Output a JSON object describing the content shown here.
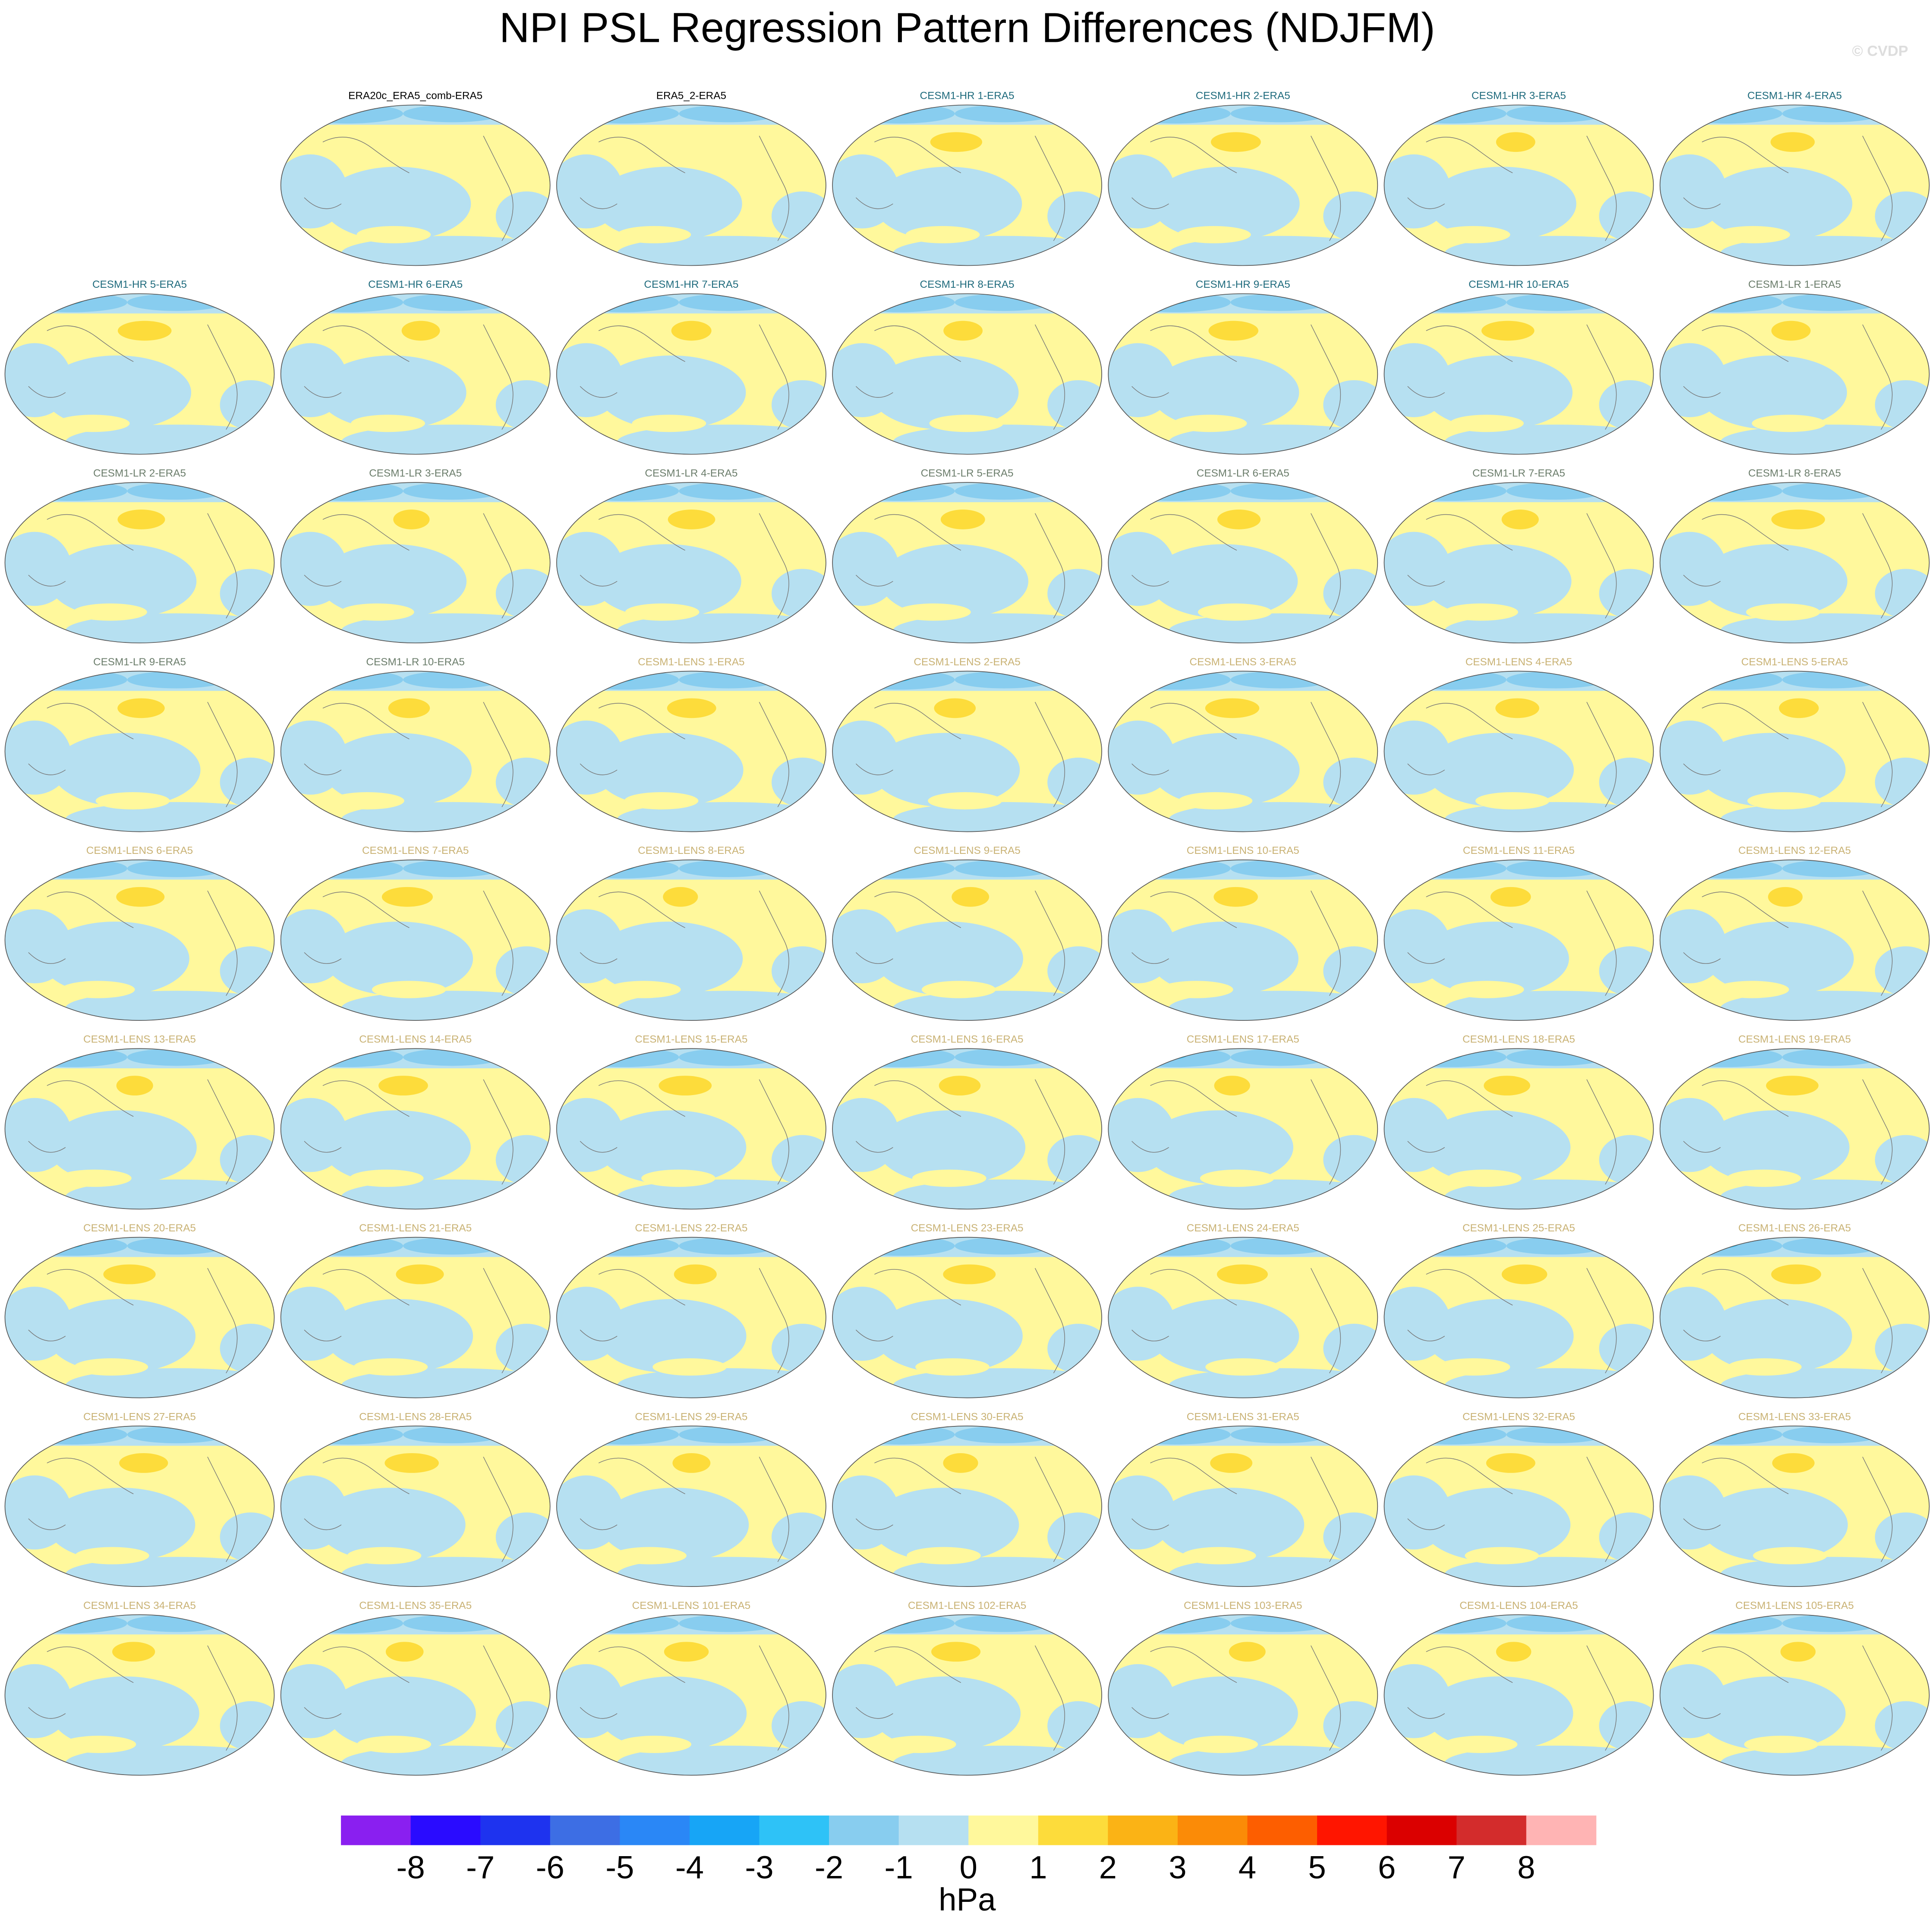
{
  "title": "NPI PSL Regression Pattern Differences (NDJFM)",
  "watermark": "© CVDP",
  "panels": [
    {
      "label": "ERA20c_ERA5_comb-ERA5",
      "color": "#000000"
    },
    {
      "label": "ERA5_2-ERA5",
      "color": "#000000"
    },
    {
      "label": "CESM1-HR 1-ERA5",
      "color": "#1f6b7d"
    },
    {
      "label": "CESM1-HR 2-ERA5",
      "color": "#1f6b7d"
    },
    {
      "label": "CESM1-HR 3-ERA5",
      "color": "#1f6b7d"
    },
    {
      "label": "CESM1-HR 4-ERA5",
      "color": "#1f6b7d"
    },
    {
      "label": "CESM1-HR 5-ERA5",
      "color": "#1f6b7d"
    },
    {
      "label": "CESM1-HR 6-ERA5",
      "color": "#1f6b7d"
    },
    {
      "label": "CESM1-HR 7-ERA5",
      "color": "#1f6b7d"
    },
    {
      "label": "CESM1-HR 8-ERA5",
      "color": "#1f6b7d"
    },
    {
      "label": "CESM1-HR 9-ERA5",
      "color": "#1f6b7d"
    },
    {
      "label": "CESM1-HR 10-ERA5",
      "color": "#1f6b7d"
    },
    {
      "label": "CESM1-LR 1-ERA5",
      "color": "#6b7d6b"
    },
    {
      "label": "CESM1-LR 2-ERA5",
      "color": "#6b7d6b"
    },
    {
      "label": "CESM1-LR 3-ERA5",
      "color": "#6b7d6b"
    },
    {
      "label": "CESM1-LR 4-ERA5",
      "color": "#6b7d6b"
    },
    {
      "label": "CESM1-LR 5-ERA5",
      "color": "#6b7d6b"
    },
    {
      "label": "CESM1-LR 6-ERA5",
      "color": "#6b7d6b"
    },
    {
      "label": "CESM1-LR 7-ERA5",
      "color": "#6b7d6b"
    },
    {
      "label": "CESM1-LR 8-ERA5",
      "color": "#6b7d6b"
    },
    {
      "label": "CESM1-LR 9-ERA5",
      "color": "#6b7d6b"
    },
    {
      "label": "CESM1-LR 10-ERA5",
      "color": "#6b7d6b"
    },
    {
      "label": "CESM1-LENS 1-ERA5",
      "color": "#c9b274"
    },
    {
      "label": "CESM1-LENS 2-ERA5",
      "color": "#c9b274"
    },
    {
      "label": "CESM1-LENS 3-ERA5",
      "color": "#c9b274"
    },
    {
      "label": "CESM1-LENS 4-ERA5",
      "color": "#c9b274"
    },
    {
      "label": "CESM1-LENS 5-ERA5",
      "color": "#c9b274"
    },
    {
      "label": "CESM1-LENS 6-ERA5",
      "color": "#c9b274"
    },
    {
      "label": "CESM1-LENS 7-ERA5",
      "color": "#c9b274"
    },
    {
      "label": "CESM1-LENS 8-ERA5",
      "color": "#c9b274"
    },
    {
      "label": "CESM1-LENS 9-ERA5",
      "color": "#c9b274"
    },
    {
      "label": "CESM1-LENS 10-ERA5",
      "color": "#c9b274"
    },
    {
      "label": "CESM1-LENS 11-ERA5",
      "color": "#c9b274"
    },
    {
      "label": "CESM1-LENS 12-ERA5",
      "color": "#c9b274"
    },
    {
      "label": "CESM1-LENS 13-ERA5",
      "color": "#c9b274"
    },
    {
      "label": "CESM1-LENS 14-ERA5",
      "color": "#c9b274"
    },
    {
      "label": "CESM1-LENS 15-ERA5",
      "color": "#c9b274"
    },
    {
      "label": "CESM1-LENS 16-ERA5",
      "color": "#c9b274"
    },
    {
      "label": "CESM1-LENS 17-ERA5",
      "color": "#c9b274"
    },
    {
      "label": "CESM1-LENS 18-ERA5",
      "color": "#c9b274"
    },
    {
      "label": "CESM1-LENS 19-ERA5",
      "color": "#c9b274"
    },
    {
      "label": "CESM1-LENS 20-ERA5",
      "color": "#c9b274"
    },
    {
      "label": "CESM1-LENS 21-ERA5",
      "color": "#c9b274"
    },
    {
      "label": "CESM1-LENS 22-ERA5",
      "color": "#c9b274"
    },
    {
      "label": "CESM1-LENS 23-ERA5",
      "color": "#c9b274"
    },
    {
      "label": "CESM1-LENS 24-ERA5",
      "color": "#c9b274"
    },
    {
      "label": "CESM1-LENS 25-ERA5",
      "color": "#c9b274"
    },
    {
      "label": "CESM1-LENS 26-ERA5",
      "color": "#c9b274"
    },
    {
      "label": "CESM1-LENS 27-ERA5",
      "color": "#c9b274"
    },
    {
      "label": "CESM1-LENS 28-ERA5",
      "color": "#c9b274"
    },
    {
      "label": "CESM1-LENS 29-ERA5",
      "color": "#c9b274"
    },
    {
      "label": "CESM1-LENS 30-ERA5",
      "color": "#c9b274"
    },
    {
      "label": "CESM1-LENS 31-ERA5",
      "color": "#c9b274"
    },
    {
      "label": "CESM1-LENS 32-ERA5",
      "color": "#c9b274"
    },
    {
      "label": "CESM1-LENS 33-ERA5",
      "color": "#c9b274"
    },
    {
      "label": "CESM1-LENS 34-ERA5",
      "color": "#c9b274"
    },
    {
      "label": "CESM1-LENS 35-ERA5",
      "color": "#c9b274"
    },
    {
      "label": "CESM1-LENS 101-ERA5",
      "color": "#c9b274"
    },
    {
      "label": "CESM1-LENS 102-ERA5",
      "color": "#c9b274"
    },
    {
      "label": "CESM1-LENS 103-ERA5",
      "color": "#c9b274"
    },
    {
      "label": "CESM1-LENS 104-ERA5",
      "color": "#c9b274"
    },
    {
      "label": "CESM1-LENS 105-ERA5",
      "color": "#c9b274"
    }
  ],
  "colorbar": {
    "ticks": [
      -8,
      -7,
      -6,
      -5,
      -4,
      -3,
      -2,
      -1,
      0,
      1,
      2,
      3,
      4,
      5,
      6,
      7,
      8
    ],
    "colors": [
      "#8a1ff0",
      "#2a0bff",
      "#1e33ef",
      "#3d6ee4",
      "#2a87f6",
      "#17a5f6",
      "#2ec2f7",
      "#88cdef",
      "#b6e0f1",
      "#fff89c",
      "#fddc3b",
      "#fbb315",
      "#fb8b07",
      "#fd5e00",
      "#ff1500",
      "#db0000",
      "#d32c2c",
      "#ffb4b4"
    ],
    "unit": "hPa"
  }
}
